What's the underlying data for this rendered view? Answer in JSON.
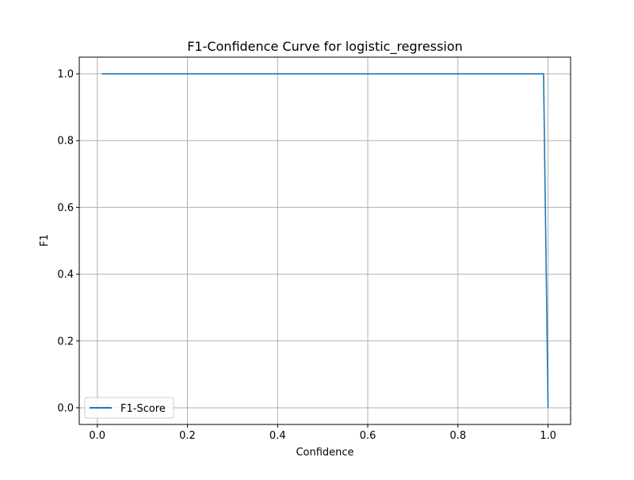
{
  "chart_data": {
    "type": "line",
    "title": "F1-Confidence Curve for logistic_regression",
    "xlabel": "Confidence",
    "ylabel": "F1",
    "xlim": [
      -0.04,
      1.05
    ],
    "ylim": [
      -0.05,
      1.05
    ],
    "xticks": [
      0.0,
      0.2,
      0.4,
      0.6,
      0.8,
      1.0
    ],
    "xtick_labels": [
      "0.0",
      "0.2",
      "0.4",
      "0.6",
      "0.8",
      "1.0"
    ],
    "yticks": [
      0.0,
      0.2,
      0.4,
      0.6,
      0.8,
      1.0
    ],
    "ytick_labels": [
      "0.0",
      "0.2",
      "0.4",
      "0.6",
      "0.8",
      "1.0"
    ],
    "grid": true,
    "legend_position": "lower-left",
    "series": [
      {
        "name": "F1-Score",
        "color": "#1f77b4",
        "x": [
          0.01,
          0.99,
          1.0
        ],
        "y": [
          1.0,
          1.0,
          0.0
        ]
      }
    ]
  }
}
